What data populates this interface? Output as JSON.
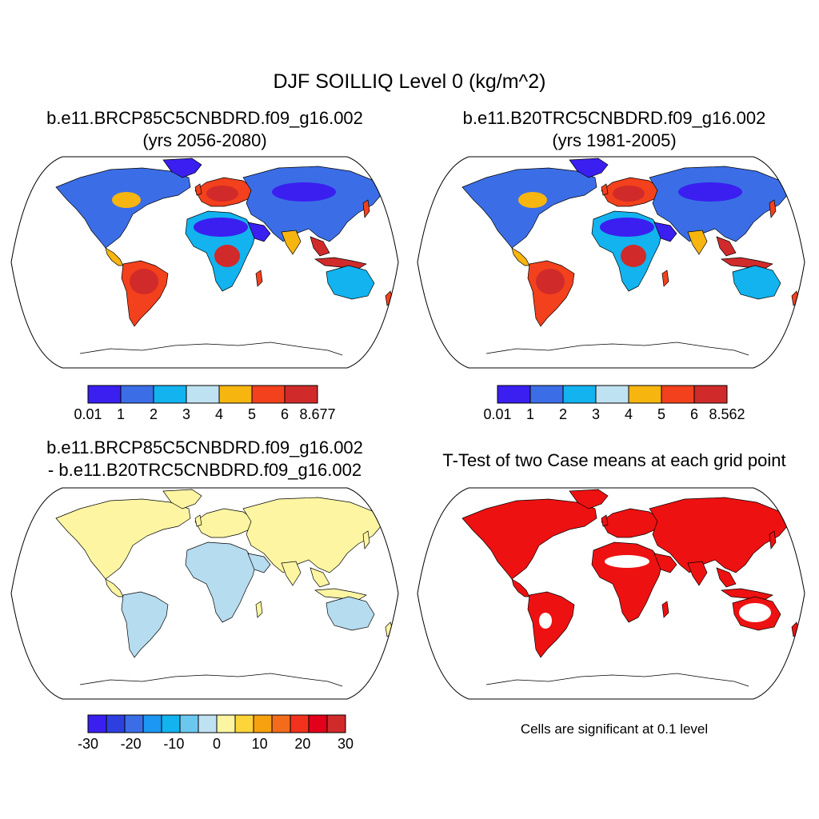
{
  "title": "DJF SOILLIQ Level 0 (kg/m^2)",
  "panels": [
    {
      "id": "p1",
      "title_line1": "b.e11.BRCP85C5CNBDRD.f09_g16.002",
      "title_line2": "(yrs 2056-2080)",
      "colorbar": {
        "colors": [
          "#3a1ff0",
          "#3b6ee6",
          "#12b3ee",
          "#bfe2f2",
          "#f7b50f",
          "#f2411c",
          "#d12a2a"
        ],
        "labels": [
          "0.01",
          "1",
          "2",
          "3",
          "4",
          "5",
          "6",
          "8.677"
        ]
      }
    },
    {
      "id": "p2",
      "title_line1": "b.e11.B20TRC5CNBDRD.f09_g16.002",
      "title_line2": "(yrs 1981-2005)",
      "colorbar": {
        "colors": [
          "#3a1ff0",
          "#3b6ee6",
          "#12b3ee",
          "#bfe2f2",
          "#f7b50f",
          "#f2411c",
          "#d12a2a"
        ],
        "labels": [
          "0.01",
          "1",
          "2",
          "3",
          "4",
          "5",
          "6",
          "8.562"
        ]
      }
    },
    {
      "id": "p3",
      "title_line1": "b.e11.BRCP85C5CNBDRD.f09_g16.002",
      "title_line2": "- b.e11.B20TRC5CNBDRD.f09_g16.002",
      "colorbar": {
        "colors": [
          "#3a1ff0",
          "#2e3fe0",
          "#3b6ee6",
          "#1c97f2",
          "#12b3ee",
          "#6cc7ef",
          "#bfe2f2",
          "#fdf5a2",
          "#fbd53a",
          "#f7a10f",
          "#f26c1c",
          "#f2321c",
          "#e2001a",
          "#d12a2a"
        ],
        "labels": [
          "-30",
          "-20",
          "-10",
          "0",
          "10",
          "20",
          "30"
        ]
      }
    },
    {
      "id": "p4",
      "title_line1": "T-Test of two Case means at each grid point",
      "note": "Cells are significant at 0.1 level"
    }
  ],
  "colors": {
    "ocean": "#ffffff",
    "coast": "#000000",
    "diff_land_positive": "#fdf5a2",
    "diff_land_negative": "#b5dcef",
    "significant": "#ee1111"
  }
}
